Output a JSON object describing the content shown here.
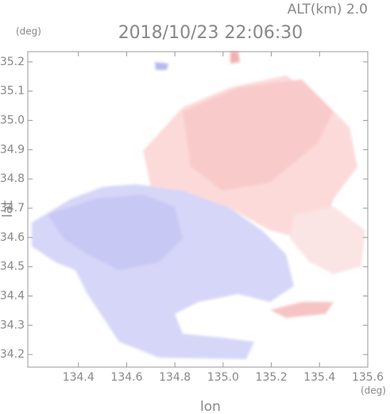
{
  "chart_data": {
    "type": "map",
    "title": "2018/10/23 22:06:30",
    "subtitle": "ALT(km) 2.0",
    "x_label": "lon",
    "y_label": "lat",
    "x_unit": "(deg)",
    "y_unit": "(deg)",
    "xlim": [
      134.19,
      135.6
    ],
    "ylim": [
      34.157,
      35.235
    ],
    "xticks": [
      134.4,
      134.6,
      134.8,
      {
        "value": 135,
        "label": "135.0"
      },
      135.2,
      135.4,
      135.6
    ],
    "yticks": [
      34.2,
      34.3,
      34.4,
      34.5,
      34.6,
      34.7,
      34.8,
      34.9,
      {
        "value": 35,
        "label": "35.0"
      },
      35.1,
      35.2
    ]
  }
}
